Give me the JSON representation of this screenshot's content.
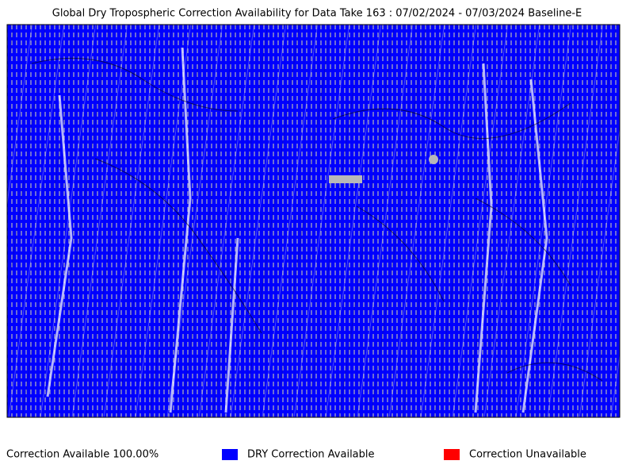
{
  "header": {
    "title": "Global Dry Tropospheric Correction Availability for Data Take 163 : 07/02/2024 - 07/03/2024 Baseline-E"
  },
  "footer": {
    "statistic": "Correction Available 100.00%"
  },
  "legend": {
    "items": [
      {
        "label": "DRY Correction Available",
        "color": "#0000ff"
      },
      {
        "label": "Correction Unavailable",
        "color": "#ff0000"
      }
    ]
  }
}
